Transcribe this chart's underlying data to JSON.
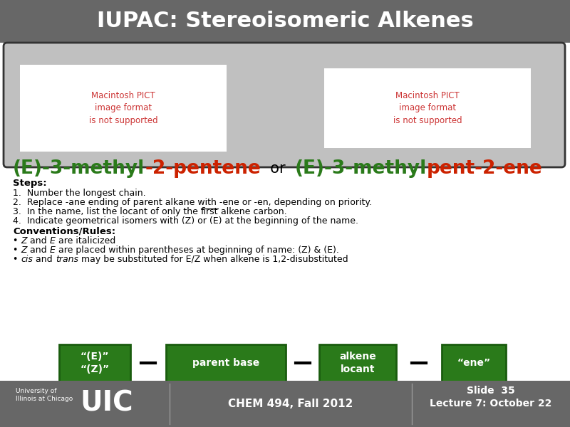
{
  "title": "IUPAC: Stereoisomeric Alkenes",
  "title_bg": "#676767",
  "title_color": "#ffffff",
  "slide_bg": "#ffffff",
  "image_box_bg": "#c0c0c0",
  "image_placeholder_bg": "#ffffff",
  "image_placeholder_text": "Macintosh PICT\nimage format\nis not supported",
  "image_placeholder_color": "#cc3333",
  "steps_bold": "Steps:",
  "steps": [
    "1.  Number the longest chain.",
    "2.  Replace -ane ending of parent alkane with -ene or -en, depending on priority.",
    "3.  In the name, list the locant of only the first alkene carbon.",
    "4.  Indicate geometrical isomers with (Z) or (E) at the beginning of the name."
  ],
  "conventions_bold": "Conventions/Rules:",
  "conventions": [
    [
      "Z",
      " and ",
      "E",
      " are italicized"
    ],
    [
      "Z",
      " and ",
      "E",
      " are placed within parentheses at beginning of name: (Z) & (E)."
    ],
    [
      "cis",
      " and ",
      "trans",
      " may be substituted for E/Z when alkene is 1,2-disubstituted"
    ]
  ],
  "green_box_labels": [
    "“(E)”\n“(Z)”",
    "parent base",
    "alkene\nlocant",
    "“ene”"
  ],
  "green_color": "#2a7a1a",
  "green_border": "#1a5c0e",
  "footer_bg": "#676767",
  "footer_color": "#ffffff",
  "footer_left_small": "University of\nIllinois at Chicago",
  "footer_uic": "UIC",
  "footer_center": "CHEM 494, Fall 2012",
  "footer_right": "Slide  35\nLecture 7: October 22"
}
